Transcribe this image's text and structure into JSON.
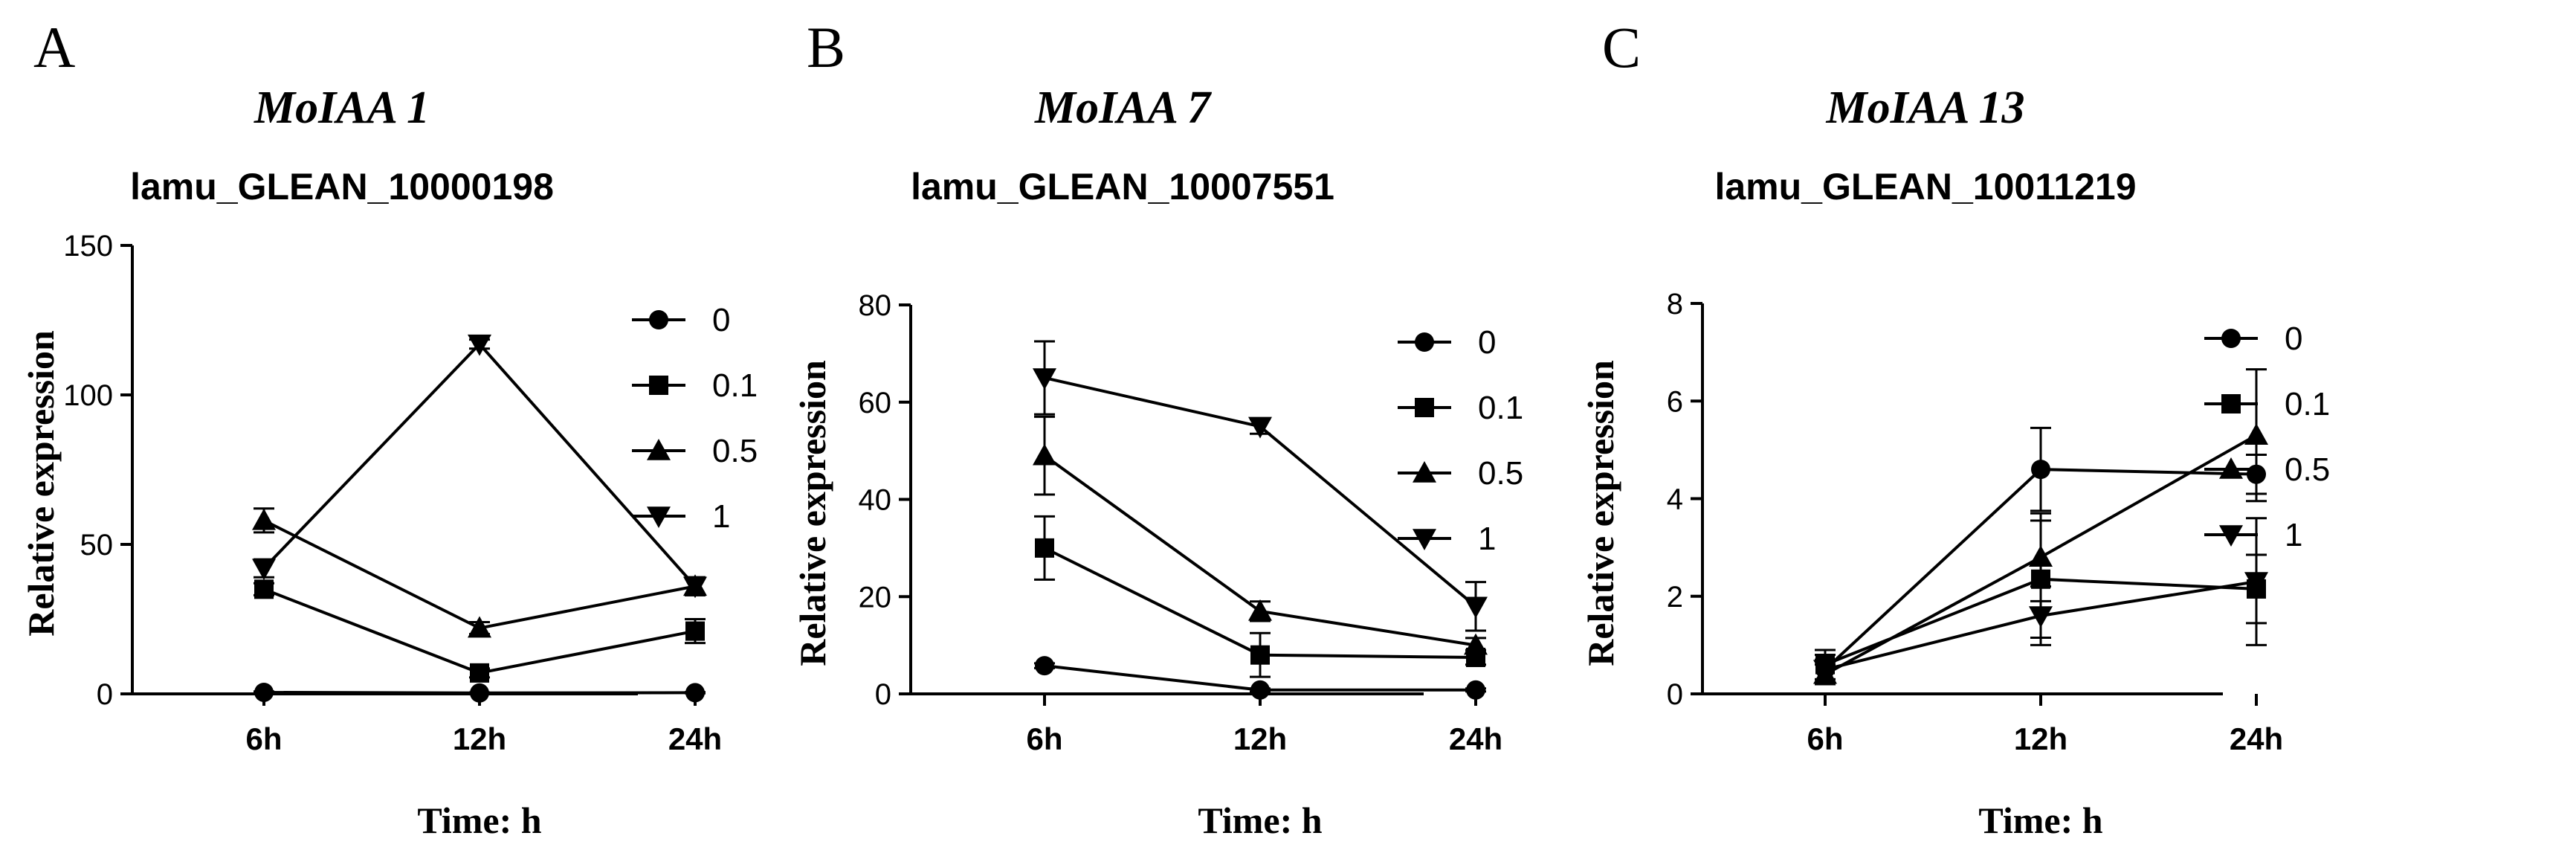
{
  "chart_data": [
    {
      "type": "line",
      "panel_letter": "A",
      "title": "MoIAA 1",
      "subtitle": "lamu_GLEAN_10000198",
      "xlabel": "Time: h",
      "ylabel": "Relative expression",
      "categories": [
        "6h",
        "12h",
        "24h"
      ],
      "ylim": [
        0,
        150
      ],
      "yticks": [
        "0",
        "50",
        "100",
        "150"
      ],
      "legend_position": "right",
      "series": [
        {
          "name": "0",
          "marker": "circle",
          "values": [
            0.5,
            0.3,
            0.4
          ],
          "errors": [
            0.3,
            0.2,
            0.2
          ]
        },
        {
          "name": "0.1",
          "marker": "square",
          "values": [
            35,
            7,
            21
          ],
          "errors": [
            2,
            1.5,
            4
          ]
        },
        {
          "name": "0.5",
          "marker": "triangle-up",
          "values": [
            58,
            22,
            36
          ],
          "errors": [
            4,
            2,
            3
          ]
        },
        {
          "name": "1",
          "marker": "triangle-down",
          "values": [
            42,
            117,
            36
          ],
          "errors": [
            3,
            1.5,
            3
          ]
        }
      ]
    },
    {
      "type": "line",
      "panel_letter": "B",
      "title": "MoIAA 7",
      "subtitle": "lamu_GLEAN_10007551",
      "xlabel": "Time: h",
      "ylabel": "Relative expression",
      "categories": [
        "6h",
        "12h",
        "24h"
      ],
      "ylim": [
        0,
        80
      ],
      "yticks": [
        "0",
        "20",
        "40",
        "60",
        "80"
      ],
      "legend_position": "right",
      "series": [
        {
          "name": "0",
          "marker": "circle",
          "values": [
            5.8,
            0.8,
            0.8
          ],
          "errors": [
            0.5,
            0.3,
            0.3
          ]
        },
        {
          "name": "0.1",
          "marker": "square",
          "values": [
            30,
            8,
            7.5
          ],
          "errors": [
            6.5,
            4.5,
            1.5
          ]
        },
        {
          "name": "0.5",
          "marker": "triangle-up",
          "values": [
            49,
            17,
            10
          ],
          "errors": [
            8,
            2,
            1.5
          ]
        },
        {
          "name": "1",
          "marker": "triangle-down",
          "values": [
            65,
            55,
            18
          ],
          "errors": [
            7.5,
            1.5,
            5
          ]
        }
      ]
    },
    {
      "type": "line",
      "panel_letter": "C",
      "title": "MoIAA 13",
      "subtitle": "lamu_GLEAN_10011219",
      "xlabel": "Time: h",
      "ylabel": "Relative expression",
      "categories": [
        "6h",
        "12h",
        "24h"
      ],
      "ylim": [
        0,
        8
      ],
      "yticks": [
        "0",
        "2",
        "4",
        "6",
        "8"
      ],
      "legend_position": "right",
      "series": [
        {
          "name": "0",
          "marker": "circle",
          "values": [
            0.5,
            4.6,
            4.5
          ],
          "errors": [
            0.2,
            0.85,
            0.4
          ]
        },
        {
          "name": "0.1",
          "marker": "square",
          "values": [
            0.6,
            2.35,
            2.15
          ],
          "errors": [
            0.3,
            1.2,
            0.7
          ]
        },
        {
          "name": "0.5",
          "marker": "triangle-up",
          "values": [
            0.4,
            2.8,
            5.3
          ],
          "errors": [
            0.2,
            0.9,
            1.35
          ]
        },
        {
          "name": "1",
          "marker": "triangle-down",
          "values": [
            0.5,
            1.6,
            2.3
          ],
          "errors": [
            0.3,
            0.6,
            1.3
          ]
        }
      ]
    }
  ]
}
